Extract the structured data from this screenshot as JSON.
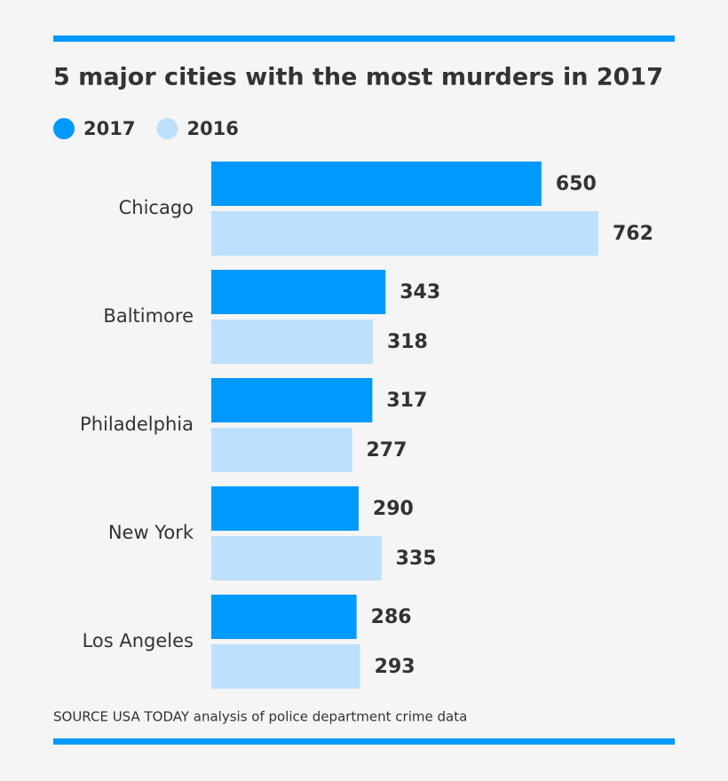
{
  "chart_data": {
    "type": "bar",
    "orientation": "horizontal",
    "title": "5 major cities with the most murders in 2017",
    "categories": [
      "Chicago",
      "Baltimore",
      "Philadelphia",
      "New York",
      "Los Angeles"
    ],
    "series": [
      {
        "name": "2017",
        "color": "#0099ff",
        "values": [
          650,
          343,
          317,
          290,
          286
        ]
      },
      {
        "name": "2016",
        "color": "#bde0fc",
        "values": [
          762,
          318,
          277,
          335,
          293
        ]
      }
    ],
    "source": "SOURCE USA TODAY analysis of police department crime data"
  }
}
